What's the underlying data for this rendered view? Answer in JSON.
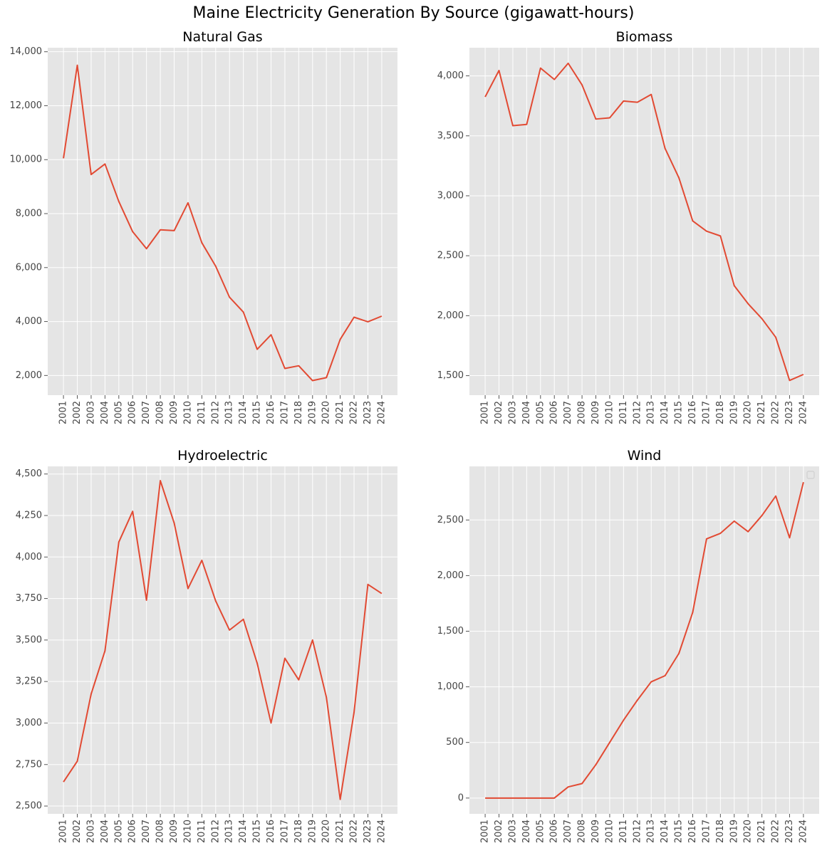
{
  "title": "Maine Electricity Generation By Source (gigawatt-hours)",
  "colors": {
    "line": "#e24a33",
    "plot_bg": "#e5e5e5",
    "grid": "#ffffff"
  },
  "chart_data": [
    {
      "type": "line",
      "title": "Natural Gas",
      "categories": [
        "2001",
        "2002",
        "2003",
        "2004",
        "2005",
        "2006",
        "2007",
        "2008",
        "2009",
        "2010",
        "2011",
        "2012",
        "2013",
        "2014",
        "2015",
        "2016",
        "2017",
        "2018",
        "2019",
        "2020",
        "2021",
        "2022",
        "2023",
        "2024"
      ],
      "values": [
        10050,
        13500,
        9450,
        9840,
        8450,
        7330,
        6700,
        7400,
        7370,
        8400,
        6920,
        6050,
        4900,
        4350,
        2970,
        3510,
        2260,
        2360,
        1810,
        1920,
        3340,
        4160,
        3990,
        4200
      ],
      "yticks": [
        2000,
        4000,
        6000,
        8000,
        10000,
        12000,
        14000
      ],
      "ytick_labels": [
        "2,000",
        "4,000",
        "6,000",
        "8,000",
        "10,000",
        "12,000",
        "14,000"
      ],
      "ylim": [
        1270,
        14150
      ],
      "grid": true
    },
    {
      "type": "line",
      "title": "Biomass",
      "categories": [
        "2001",
        "2002",
        "2003",
        "2004",
        "2005",
        "2006",
        "2007",
        "2008",
        "2009",
        "2010",
        "2011",
        "2012",
        "2013",
        "2014",
        "2015",
        "2016",
        "2017",
        "2018",
        "2019",
        "2020",
        "2021",
        "2022",
        "2023",
        "2024"
      ],
      "values": [
        3825,
        4045,
        3585,
        3595,
        4065,
        3970,
        4105,
        3925,
        3640,
        3650,
        3790,
        3780,
        3845,
        3395,
        3150,
        2790,
        2705,
        2665,
        2250,
        2100,
        1975,
        1820,
        1460,
        1510
      ],
      "yticks": [
        1500,
        2000,
        2500,
        3000,
        3500,
        4000
      ],
      "ytick_labels": [
        "1,500",
        "2,000",
        "2,500",
        "3,000",
        "3,500",
        "4,000"
      ],
      "ylim": [
        1337,
        4235
      ],
      "grid": true
    },
    {
      "type": "line",
      "title": "Hydroelectric",
      "categories": [
        "2001",
        "2002",
        "2003",
        "2004",
        "2005",
        "2006",
        "2007",
        "2008",
        "2009",
        "2010",
        "2011",
        "2012",
        "2013",
        "2014",
        "2015",
        "2016",
        "2017",
        "2018",
        "2019",
        "2020",
        "2021",
        "2022",
        "2023",
        "2024"
      ],
      "values": [
        2645,
        2770,
        3175,
        3435,
        4090,
        4275,
        3740,
        4460,
        4205,
        3810,
        3980,
        3735,
        3560,
        3625,
        3360,
        3000,
        3390,
        3260,
        3500,
        3155,
        2540,
        3065,
        3835,
        3780
      ],
      "yticks": [
        2500,
        2750,
        3000,
        3250,
        3500,
        3750,
        4000,
        4250,
        4500
      ],
      "ytick_labels": [
        "2,500",
        "2,750",
        "3,000",
        "3,250",
        "3,500",
        "3,750",
        "4,000",
        "4,250",
        "4,500"
      ],
      "ylim": [
        2453,
        4546
      ],
      "grid": true
    },
    {
      "type": "line",
      "title": "Wind",
      "categories": [
        "2001",
        "2002",
        "2003",
        "2004",
        "2005",
        "2006",
        "2007",
        "2008",
        "2009",
        "2010",
        "2011",
        "2012",
        "2013",
        "2014",
        "2015",
        "2016",
        "2017",
        "2018",
        "2019",
        "2020",
        "2021",
        "2022",
        "2023",
        "2024"
      ],
      "values": [
        0,
        0,
        0,
        0,
        0,
        0,
        100,
        130,
        300,
        500,
        700,
        880,
        1045,
        1100,
        1300,
        1670,
        2330,
        2380,
        2490,
        2395,
        2540,
        2715,
        2340,
        2840
      ],
      "yticks": [
        0,
        500,
        1000,
        1500,
        2000,
        2500
      ],
      "ytick_labels": [
        "0",
        "500",
        "1,000",
        "1,500",
        "2,000",
        "2,500"
      ],
      "ylim": [
        -142,
        2982
      ],
      "grid": true,
      "legend": "top-right",
      "legend_entries": []
    }
  ]
}
